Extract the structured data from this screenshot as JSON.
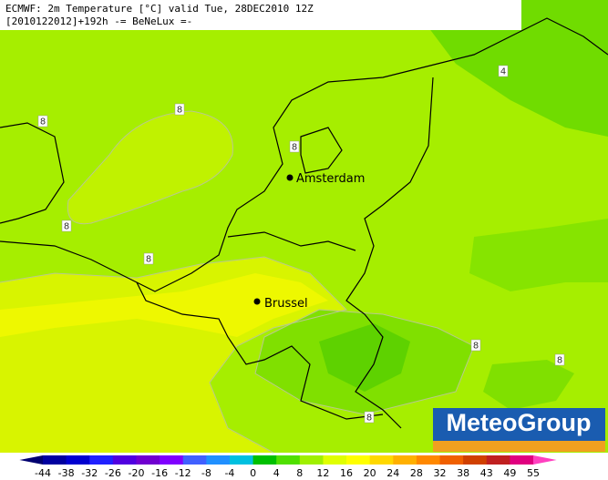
{
  "header": {
    "line1": "ECMWF: 2m Temperature [°C] valid Tue, 28DEC2010 12Z",
    "line2": "[2010122012]+192h  -= BeNeLux =-"
  },
  "cities": [
    "Amsterdam",
    "Brussel"
  ],
  "contour_labels": [
    8,
    8,
    8,
    8,
    8,
    8,
    8,
    8,
    4
  ],
  "logo": "MeteoGroup",
  "colorbar": {
    "labels": [
      -44,
      -38,
      -32,
      -26,
      -20,
      -16,
      -12,
      -8,
      -4,
      0,
      4,
      8,
      12,
      16,
      20,
      24,
      28,
      32,
      38,
      43,
      49,
      55
    ],
    "colors": [
      "#000070",
      "#0000a0",
      "#0000d0",
      "#2020ff",
      "#5000e0",
      "#7000d0",
      "#8000ff",
      "#4060ff",
      "#2090ff",
      "#00c0e0",
      "#00c000",
      "#50e000",
      "#a0f000",
      "#e0ff00",
      "#ffff00",
      "#ffd800",
      "#ffb000",
      "#ff8800",
      "#f06000",
      "#d04000",
      "#c02020",
      "#e00080",
      "#ff40c0"
    ]
  }
}
